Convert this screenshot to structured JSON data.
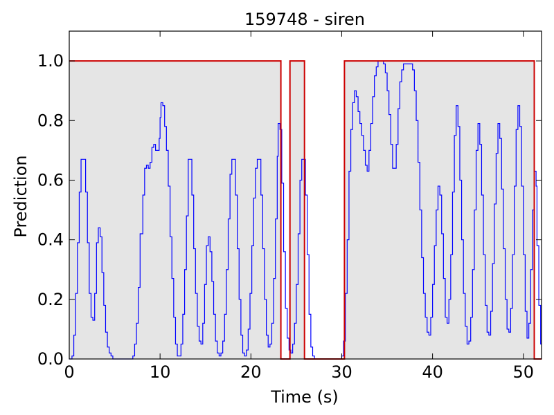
{
  "chart_data": {
    "type": "line",
    "title": "159748 - siren",
    "xlabel": "Time (s)",
    "ylabel": "Prediction",
    "xlim": [
      0,
      52
    ],
    "ylim": [
      0,
      1.1
    ],
    "xticks": [
      0,
      10,
      20,
      30,
      40,
      50
    ],
    "xtick_labels": [
      "0",
      "10",
      "20",
      "30",
      "40",
      "50"
    ],
    "yticks": [
      0.0,
      0.2,
      0.4,
      0.6,
      0.8,
      1.0
    ],
    "ytick_labels": [
      "0.0",
      "0.2",
      "0.4",
      "0.6",
      "0.8",
      "1.0"
    ],
    "grid": false,
    "legend": "none",
    "colors": {
      "prediction": "#0000ff",
      "label": "#cc0000",
      "label_fill": "#e5e5e5"
    },
    "series": [
      {
        "step": "post",
        "points": [
          [
            0.0,
            0.0
          ],
          [
            0.3,
            0.01
          ],
          [
            0.5,
            0.08
          ],
          [
            0.7,
            0.22
          ],
          [
            0.9,
            0.39
          ],
          [
            1.1,
            0.56
          ],
          [
            1.3,
            0.67
          ],
          [
            1.7,
            0.67
          ],
          [
            1.8,
            0.56
          ],
          [
            2.0,
            0.39
          ],
          [
            2.2,
            0.22
          ],
          [
            2.4,
            0.14
          ],
          [
            2.6,
            0.13
          ],
          [
            2.8,
            0.22
          ],
          [
            3.0,
            0.39
          ],
          [
            3.2,
            0.44
          ],
          [
            3.4,
            0.41
          ],
          [
            3.6,
            0.29
          ],
          [
            3.8,
            0.18
          ],
          [
            4.0,
            0.09
          ],
          [
            4.2,
            0.04
          ],
          [
            4.4,
            0.02
          ],
          [
            4.6,
            0.01
          ],
          [
            4.8,
            0.0
          ],
          [
            7.0,
            0.01
          ],
          [
            7.2,
            0.05
          ],
          [
            7.4,
            0.12
          ],
          [
            7.6,
            0.24
          ],
          [
            7.8,
            0.42
          ],
          [
            8.1,
            0.55
          ],
          [
            8.3,
            0.64
          ],
          [
            8.5,
            0.65
          ],
          [
            8.7,
            0.64
          ],
          [
            8.9,
            0.66
          ],
          [
            9.1,
            0.71
          ],
          [
            9.3,
            0.72
          ],
          [
            9.5,
            0.7
          ],
          [
            9.9,
            0.74
          ],
          [
            10.0,
            0.81
          ],
          [
            10.1,
            0.86
          ],
          [
            10.3,
            0.85
          ],
          [
            10.5,
            0.78
          ],
          [
            10.7,
            0.7
          ],
          [
            10.9,
            0.58
          ],
          [
            11.1,
            0.41
          ],
          [
            11.3,
            0.27
          ],
          [
            11.5,
            0.14
          ],
          [
            11.7,
            0.05
          ],
          [
            11.9,
            0.01
          ],
          [
            12.1,
            0.01
          ],
          [
            12.3,
            0.05
          ],
          [
            12.5,
            0.15
          ],
          [
            12.7,
            0.3
          ],
          [
            12.9,
            0.48
          ],
          [
            13.1,
            0.67
          ],
          [
            13.3,
            0.67
          ],
          [
            13.5,
            0.55
          ],
          [
            13.7,
            0.37
          ],
          [
            13.9,
            0.22
          ],
          [
            14.1,
            0.11
          ],
          [
            14.3,
            0.06
          ],
          [
            14.5,
            0.05
          ],
          [
            14.7,
            0.12
          ],
          [
            14.9,
            0.25
          ],
          [
            15.1,
            0.38
          ],
          [
            15.3,
            0.41
          ],
          [
            15.5,
            0.36
          ],
          [
            15.7,
            0.26
          ],
          [
            15.9,
            0.15
          ],
          [
            16.1,
            0.06
          ],
          [
            16.3,
            0.02
          ],
          [
            16.5,
            0.01
          ],
          [
            16.7,
            0.02
          ],
          [
            16.9,
            0.06
          ],
          [
            17.1,
            0.15
          ],
          [
            17.3,
            0.3
          ],
          [
            17.5,
            0.47
          ],
          [
            17.7,
            0.62
          ],
          [
            17.9,
            0.67
          ],
          [
            18.2,
            0.67
          ],
          [
            18.3,
            0.55
          ],
          [
            18.5,
            0.37
          ],
          [
            18.7,
            0.2
          ],
          [
            18.9,
            0.08
          ],
          [
            19.1,
            0.02
          ],
          [
            19.3,
            0.01
          ],
          [
            19.5,
            0.03
          ],
          [
            19.7,
            0.1
          ],
          [
            19.9,
            0.22
          ],
          [
            20.1,
            0.38
          ],
          [
            20.3,
            0.54
          ],
          [
            20.5,
            0.64
          ],
          [
            20.7,
            0.67
          ],
          [
            21.0,
            0.67
          ],
          [
            21.1,
            0.55
          ],
          [
            21.3,
            0.37
          ],
          [
            21.5,
            0.2
          ],
          [
            21.7,
            0.08
          ],
          [
            21.9,
            0.04
          ],
          [
            22.1,
            0.05
          ],
          [
            22.3,
            0.12
          ],
          [
            22.5,
            0.27
          ],
          [
            22.7,
            0.47
          ],
          [
            22.9,
            0.68
          ],
          [
            23.0,
            0.79
          ],
          [
            23.2,
            0.77
          ],
          [
            23.4,
            0.59
          ],
          [
            23.6,
            0.36
          ],
          [
            23.8,
            0.17
          ],
          [
            24.0,
            0.07
          ],
          [
            24.2,
            0.03
          ],
          [
            24.4,
            0.02
          ],
          [
            24.6,
            0.05
          ],
          [
            24.8,
            0.12
          ],
          [
            25.0,
            0.25
          ],
          [
            25.2,
            0.42
          ],
          [
            25.4,
            0.6
          ],
          [
            25.6,
            0.67
          ],
          [
            25.9,
            0.67
          ],
          [
            26.0,
            0.55
          ],
          [
            26.2,
            0.35
          ],
          [
            26.4,
            0.15
          ],
          [
            26.6,
            0.04
          ],
          [
            26.8,
            0.01
          ],
          [
            27.0,
            0.0
          ],
          [
            30.0,
            0.01
          ],
          [
            30.2,
            0.06
          ],
          [
            30.4,
            0.22
          ],
          [
            30.6,
            0.4
          ],
          [
            30.8,
            0.63
          ],
          [
            31.0,
            0.77
          ],
          [
            31.2,
            0.86
          ],
          [
            31.4,
            0.9
          ],
          [
            31.6,
            0.88
          ],
          [
            31.8,
            0.83
          ],
          [
            32.0,
            0.79
          ],
          [
            32.2,
            0.75
          ],
          [
            32.4,
            0.7
          ],
          [
            32.6,
            0.65
          ],
          [
            32.8,
            0.63
          ],
          [
            33.0,
            0.7
          ],
          [
            33.2,
            0.79
          ],
          [
            33.4,
            0.88
          ],
          [
            33.6,
            0.95
          ],
          [
            33.8,
            0.98
          ],
          [
            34.0,
            1.0
          ],
          [
            34.4,
            1.0
          ],
          [
            34.6,
            0.99
          ],
          [
            34.8,
            0.96
          ],
          [
            35.0,
            0.9
          ],
          [
            35.2,
            0.82
          ],
          [
            35.4,
            0.72
          ],
          [
            35.6,
            0.64
          ],
          [
            35.8,
            0.64
          ],
          [
            36.0,
            0.72
          ],
          [
            36.2,
            0.84
          ],
          [
            36.4,
            0.93
          ],
          [
            36.6,
            0.97
          ],
          [
            36.8,
            0.99
          ],
          [
            37.6,
            0.99
          ],
          [
            37.8,
            0.97
          ],
          [
            38.0,
            0.9
          ],
          [
            38.2,
            0.8
          ],
          [
            38.4,
            0.66
          ],
          [
            38.6,
            0.5
          ],
          [
            38.8,
            0.34
          ],
          [
            39.0,
            0.22
          ],
          [
            39.2,
            0.14
          ],
          [
            39.4,
            0.09
          ],
          [
            39.6,
            0.08
          ],
          [
            39.8,
            0.14
          ],
          [
            40.0,
            0.25
          ],
          [
            40.2,
            0.38
          ],
          [
            40.4,
            0.5
          ],
          [
            40.6,
            0.58
          ],
          [
            40.8,
            0.55
          ],
          [
            41.0,
            0.42
          ],
          [
            41.2,
            0.27
          ],
          [
            41.4,
            0.14
          ],
          [
            41.6,
            0.12
          ],
          [
            41.8,
            0.2
          ],
          [
            42.0,
            0.35
          ],
          [
            42.2,
            0.56
          ],
          [
            42.4,
            0.75
          ],
          [
            42.6,
            0.85
          ],
          [
            42.8,
            0.78
          ],
          [
            43.0,
            0.6
          ],
          [
            43.2,
            0.4
          ],
          [
            43.4,
            0.22
          ],
          [
            43.6,
            0.11
          ],
          [
            43.8,
            0.05
          ],
          [
            44.0,
            0.06
          ],
          [
            44.2,
            0.14
          ],
          [
            44.4,
            0.3
          ],
          [
            44.6,
            0.5
          ],
          [
            44.8,
            0.7
          ],
          [
            45.0,
            0.79
          ],
          [
            45.2,
            0.72
          ],
          [
            45.4,
            0.55
          ],
          [
            45.6,
            0.35
          ],
          [
            45.8,
            0.18
          ],
          [
            46.0,
            0.09
          ],
          [
            46.2,
            0.08
          ],
          [
            46.4,
            0.16
          ],
          [
            46.6,
            0.32
          ],
          [
            46.8,
            0.52
          ],
          [
            47.0,
            0.69
          ],
          [
            47.2,
            0.79
          ],
          [
            47.4,
            0.74
          ],
          [
            47.6,
            0.57
          ],
          [
            47.8,
            0.37
          ],
          [
            48.0,
            0.2
          ],
          [
            48.2,
            0.1
          ],
          [
            48.4,
            0.09
          ],
          [
            48.6,
            0.17
          ],
          [
            48.8,
            0.35
          ],
          [
            49.0,
            0.58
          ],
          [
            49.2,
            0.77
          ],
          [
            49.4,
            0.85
          ],
          [
            49.6,
            0.78
          ],
          [
            49.8,
            0.58
          ],
          [
            50.0,
            0.35
          ],
          [
            50.2,
            0.16
          ],
          [
            50.4,
            0.07
          ],
          [
            50.6,
            0.12
          ],
          [
            50.8,
            0.3
          ],
          [
            51.0,
            0.5
          ],
          [
            51.2,
            0.63
          ],
          [
            51.4,
            0.58
          ],
          [
            51.5,
            0.38
          ],
          [
            51.7,
            0.18
          ],
          [
            51.9,
            0.05
          ]
        ]
      },
      {
        "step": "post",
        "points": [
          [
            0.0,
            1.0
          ],
          [
            23.3,
            0.0
          ],
          [
            24.3,
            1.0
          ],
          [
            25.9,
            0.0
          ],
          [
            30.3,
            1.0
          ],
          [
            51.2,
            0.0
          ],
          [
            52.0,
            0.0
          ]
        ]
      }
    ],
    "label_segments": [
      [
        0.0,
        23.3
      ],
      [
        24.3,
        25.9
      ],
      [
        30.3,
        51.2
      ]
    ]
  }
}
